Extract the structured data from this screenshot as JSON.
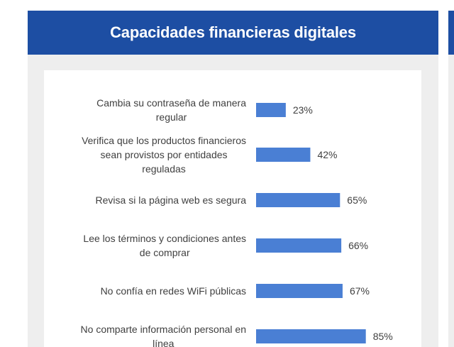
{
  "header": {
    "title": "Capacidades financieras digitales"
  },
  "colors": {
    "header_bg": "#1d4ea3",
    "bar": "#4a7fd4",
    "text": "#404040",
    "panel_bg": "#eeeeee"
  },
  "chart_data": {
    "type": "bar",
    "orientation": "horizontal",
    "title": "Capacidades financieras digitales",
    "categories": [
      [
        "Cambia su contraseña de manera",
        "regular"
      ],
      [
        "Verifica que los productos financieros",
        "sean provistos por entidades",
        "reguladas"
      ],
      [
        "Revisa si la página web es segura"
      ],
      [
        "Lee los términos y condiciones antes",
        "de comprar"
      ],
      [
        "No confía en redes WiFi públicas"
      ],
      [
        "No comparte información personal en",
        "línea"
      ]
    ],
    "values": [
      23,
      42,
      65,
      66,
      67,
      85
    ],
    "value_labels": [
      "23%",
      "42%",
      "65%",
      "66%",
      "67%",
      "85%"
    ],
    "xlim": [
      0,
      100
    ],
    "grid": false,
    "legend": "none"
  }
}
